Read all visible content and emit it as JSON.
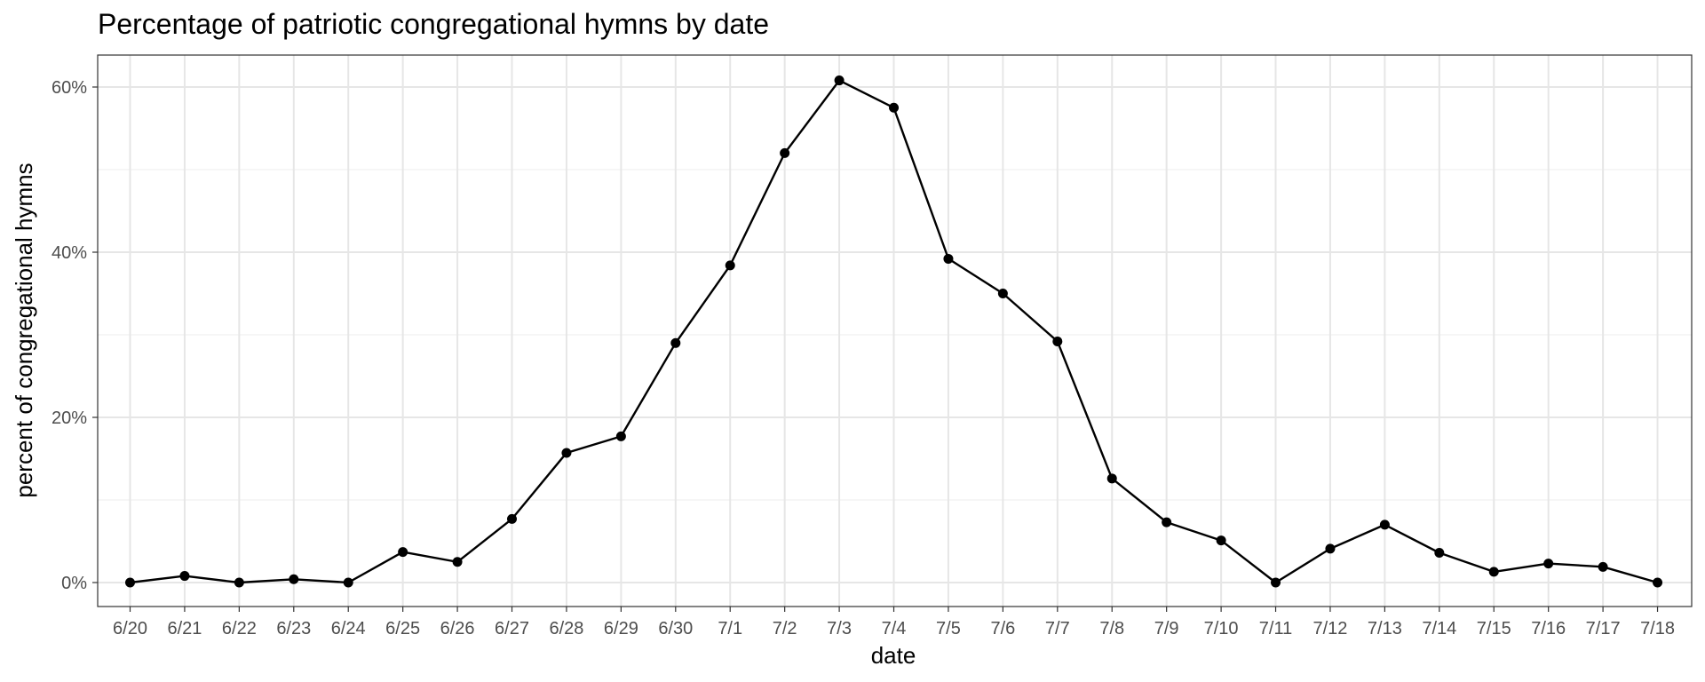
{
  "chart_data": {
    "type": "line",
    "title": "Percentage of patriotic congregational hymns by date",
    "xlabel": "date",
    "ylabel": "percent of congregational hymns",
    "ylim": [
      0,
      0.62
    ],
    "y_ticks": [
      {
        "value": 0,
        "label": "0%"
      },
      {
        "value": 0.2,
        "label": "20%"
      },
      {
        "value": 0.4,
        "label": "40%"
      },
      {
        "value": 0.6,
        "label": "60%"
      }
    ],
    "grid": true,
    "legend": "none",
    "line_color": "#000000",
    "categories": [
      "6/20",
      "6/21",
      "6/22",
      "6/23",
      "6/24",
      "6/25",
      "6/26",
      "6/27",
      "6/28",
      "6/29",
      "6/30",
      "7/1",
      "7/2",
      "7/3",
      "7/4",
      "7/5",
      "7/6",
      "7/7",
      "7/8",
      "7/9",
      "7/10",
      "7/11",
      "7/12",
      "7/13",
      "7/14",
      "7/15",
      "7/16",
      "7/17",
      "7/18"
    ],
    "values": [
      0.0,
      0.008,
      0.0,
      0.004,
      0.0,
      0.037,
      0.025,
      0.077,
      0.157,
      0.177,
      0.29,
      0.384,
      0.52,
      0.608,
      0.575,
      0.392,
      0.35,
      0.292,
      0.126,
      0.073,
      0.051,
      0.0,
      0.041,
      0.07,
      0.036,
      0.013,
      0.023,
      0.019,
      0.0
    ]
  }
}
